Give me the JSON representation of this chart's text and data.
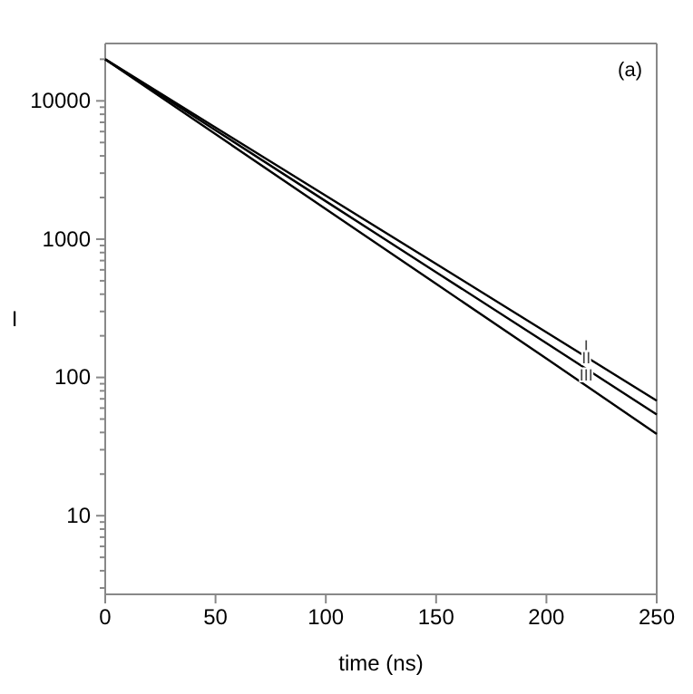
{
  "chart_data": {
    "type": "line",
    "xlabel": "time (ns)",
    "ylabel": "I",
    "log": "y",
    "xlim": [
      0,
      250
    ],
    "xticks": [
      0,
      50,
      100,
      150,
      200,
      250
    ],
    "ylim": [
      2.7,
      26000
    ],
    "yticks": [
      10,
      100,
      1000,
      10000
    ],
    "grid": false,
    "marker": "none",
    "line_style": "solid",
    "x": [
      0,
      50,
      100,
      150,
      200,
      250
    ],
    "series": [
      {
        "name": "I",
        "color": "#000000",
        "values": [
          20000,
          6420,
          2060,
          662,
          212,
          68
        ]
      },
      {
        "name": "II",
        "color": "#000000",
        "values": [
          20000,
          6140,
          1880,
          577,
          177,
          54
        ]
      },
      {
        "name": "III",
        "color": "#000000",
        "values": [
          20000,
          5750,
          1650,
          475,
          137,
          39
        ]
      }
    ],
    "annotations": [
      "(a)"
    ]
  }
}
